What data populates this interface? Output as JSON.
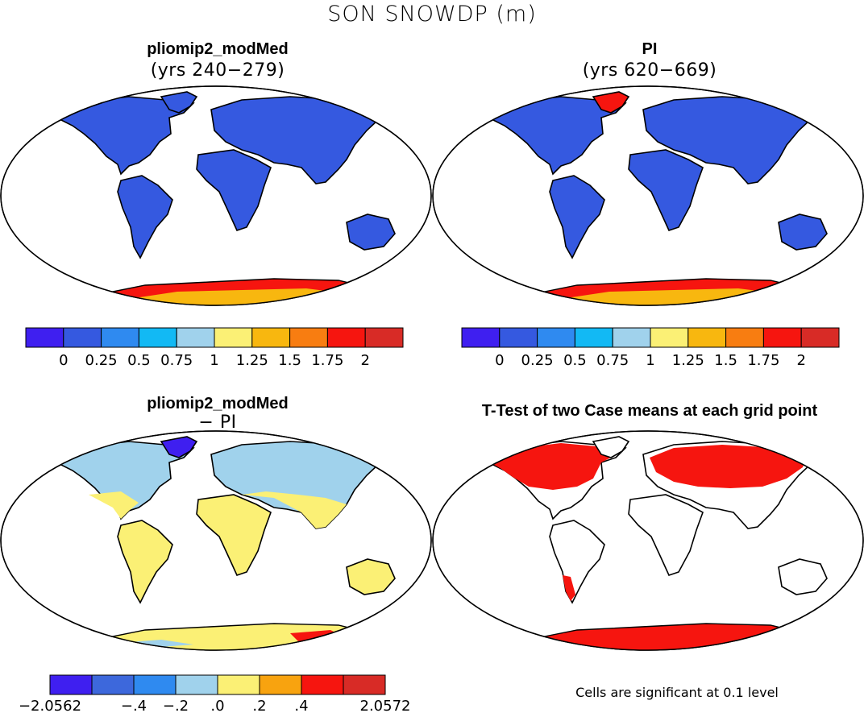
{
  "figure": {
    "title": "SON SNOWDP (m)",
    "footnote": "Cells are significant at 0.1 level"
  },
  "panels": [
    {
      "title": "pliomip2_modMed",
      "subtitle": "(yrs 240−279)"
    },
    {
      "title": "PI",
      "subtitle": "(yrs 620−669)"
    },
    {
      "title": "pliomip2_modMed",
      "subtitle": "− PI"
    },
    {
      "title": "T-Test of two Case means at each grid point",
      "subtitle": ""
    }
  ],
  "colorbars": {
    "absolute": {
      "colors": [
        "#3f1ff0",
        "#3559e0",
        "#2f8af0",
        "#12b9f4",
        "#a0d2ec",
        "#fbf075",
        "#f8b70f",
        "#f87d11",
        "#f6150f",
        "#d82b26"
      ],
      "labels": [
        "0",
        "0.25",
        "0.5",
        "0.75",
        "1",
        "1.25",
        "1.5",
        "1.75",
        "2"
      ]
    },
    "difference": {
      "colors": [
        "#3f1ff0",
        "#3d68dc",
        "#2f8af0",
        "#a0d2ec",
        "#fbf075",
        "#f8a30f",
        "#f6150f",
        "#d82b26"
      ],
      "labels": [
        "−2.0562",
        "−.4",
        "−.2",
        ".0",
        ".2",
        ".4",
        "2.0572"
      ]
    }
  },
  "colors": {
    "snow_low": "#3559e0",
    "snow_high_antarctic": "#f6150f",
    "diff_positive_nh": "#a0d2ec",
    "diff_near_zero": "#fbf075",
    "significant": "#f6150f"
  }
}
